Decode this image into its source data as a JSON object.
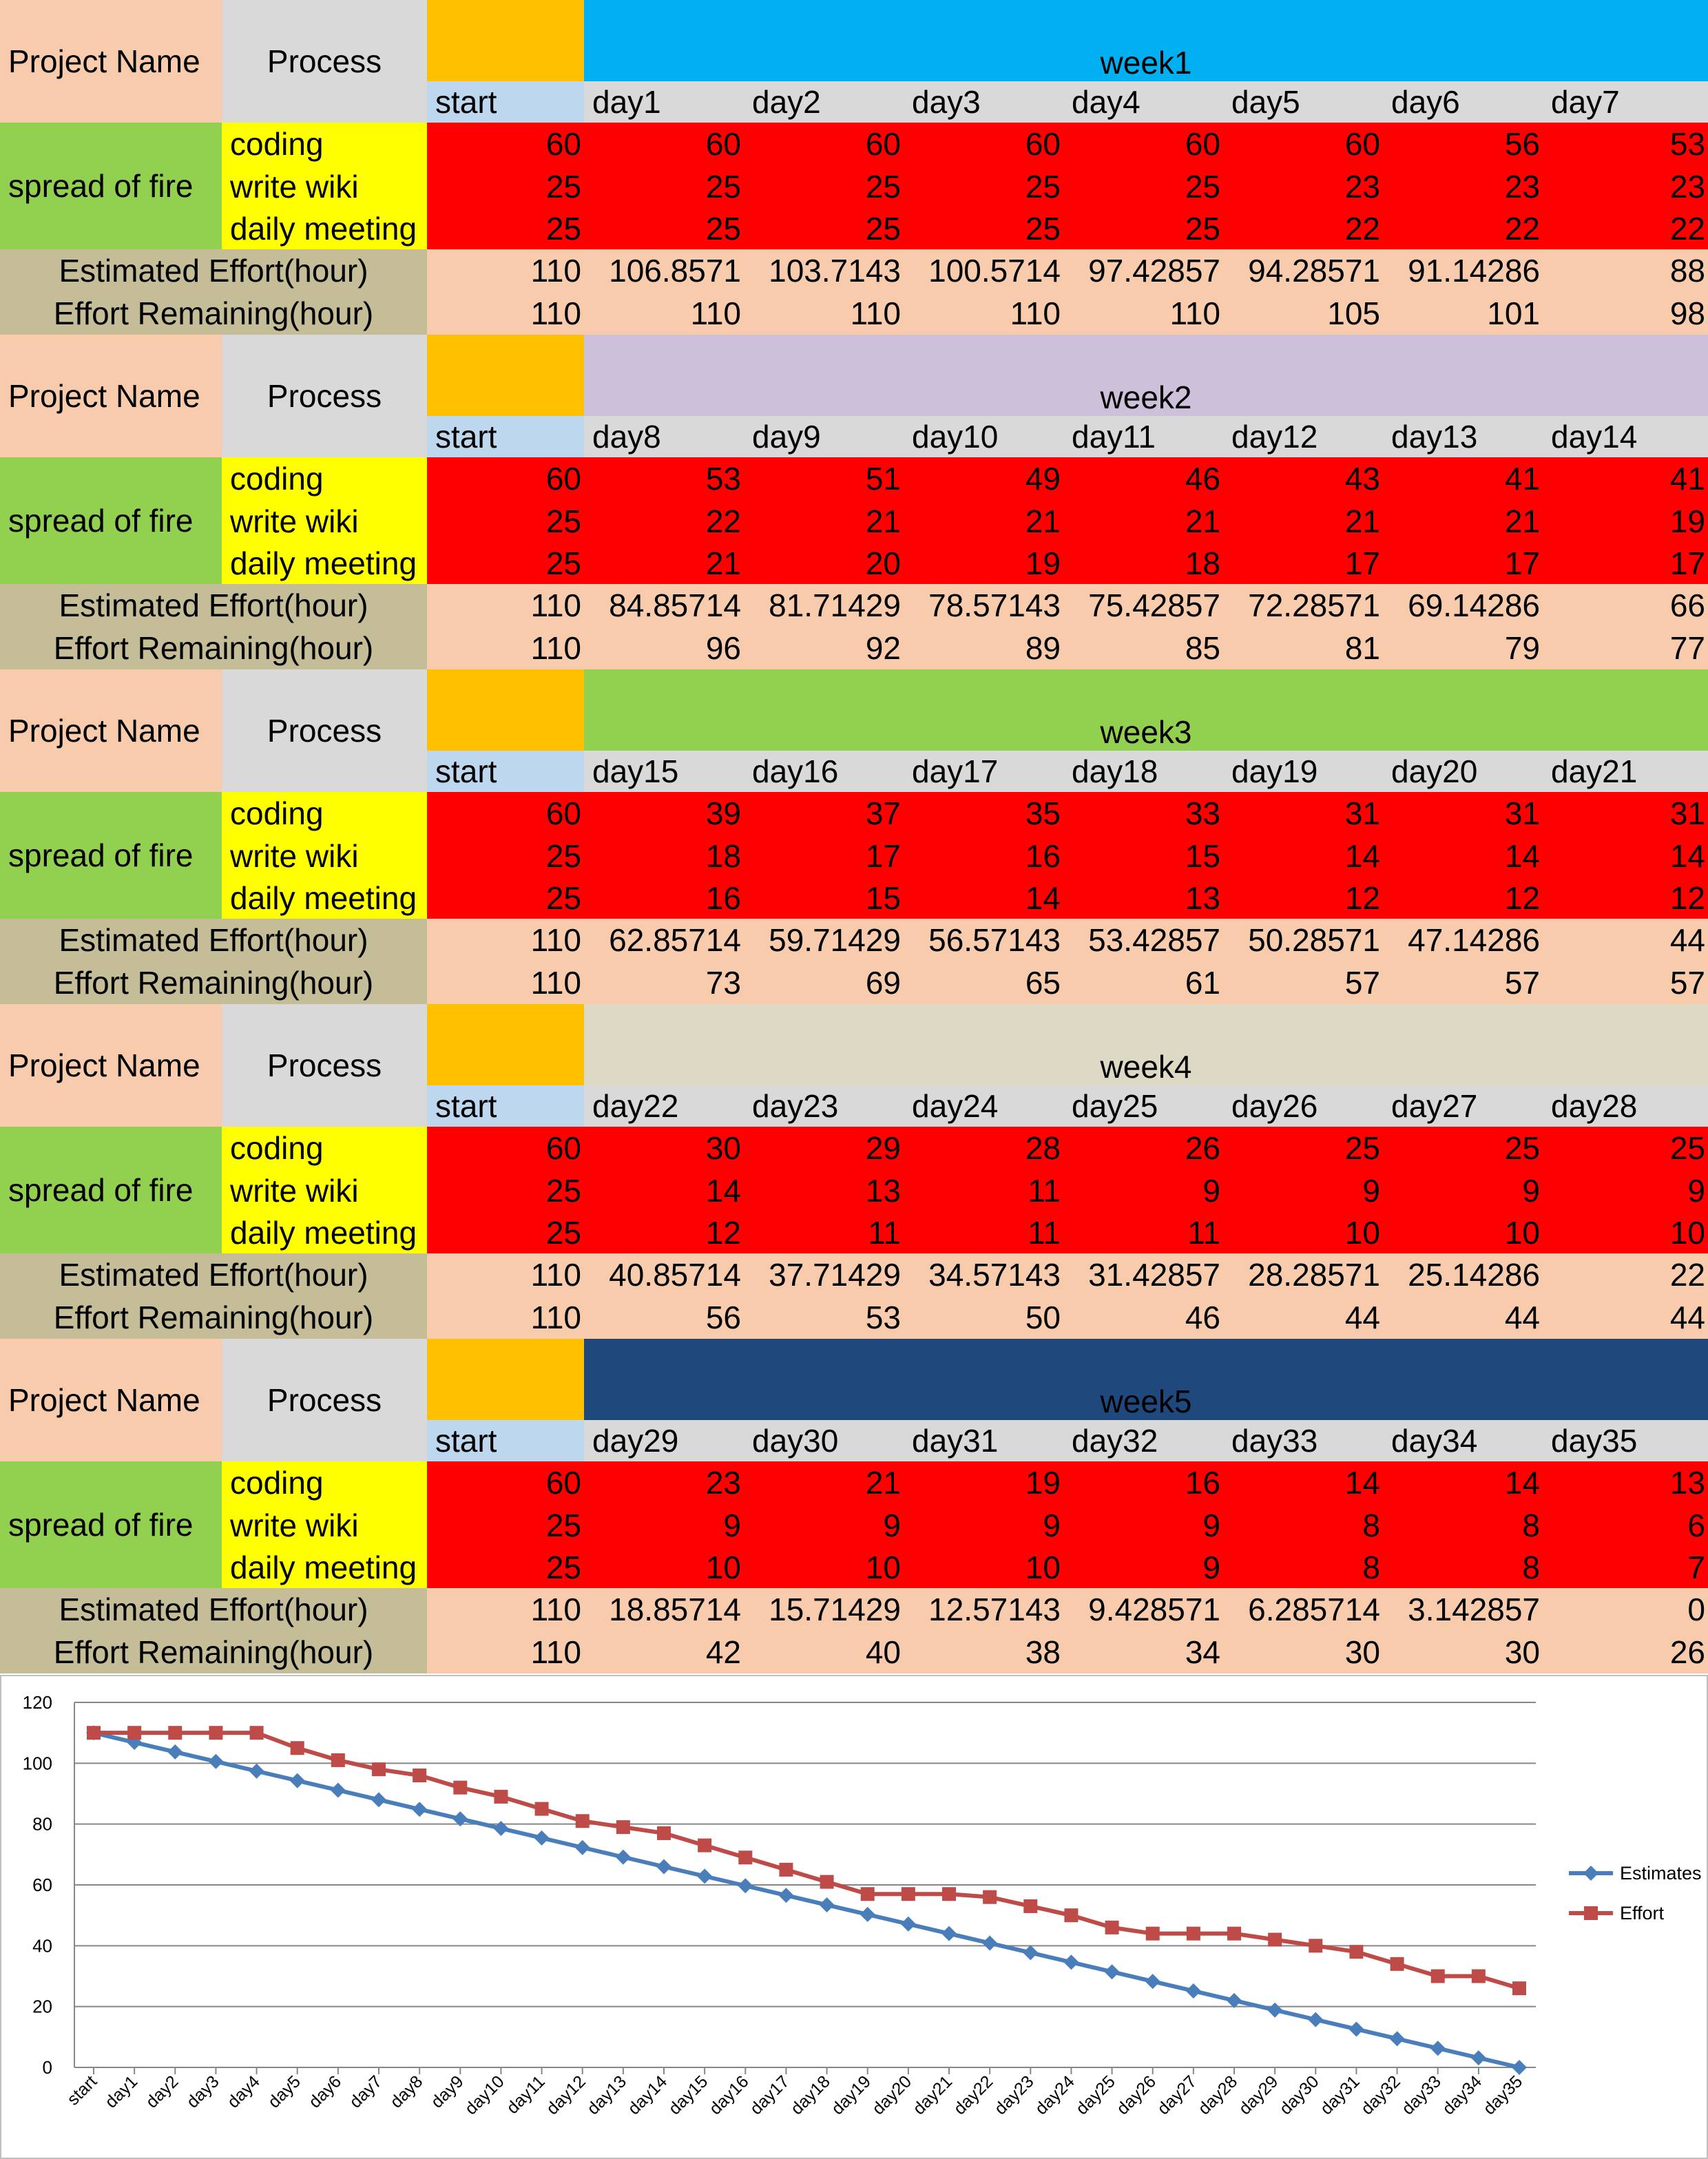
{
  "labels": {
    "project_name": "Project Name",
    "process": "Process",
    "start": "start",
    "project": "spread of fire",
    "processes": [
      "coding",
      "write wiki",
      "daily meeting"
    ],
    "estimated": "Estimated Effort(hour)",
    "remaining": "Effort Remaining(hour)"
  },
  "colors": {
    "project_name_bg": "#f8cbad",
    "process_bg": "#d9d9d9",
    "start_header_bg": "#ffc000",
    "start_bg": "#bdd7ee",
    "project_bg": "#92d050",
    "process_items_bg": "#ffff00",
    "values_bg": "#ff0000",
    "effort_label_bg": "#c4bd97",
    "effort_bg": "#f8cbad",
    "estimates_line": "#4a7ebb",
    "effort_line": "#be4b48"
  },
  "weeks": [
    {
      "title": "week1",
      "color": "#00b0f0",
      "title_color": "#000000",
      "days": [
        "day1",
        "day2",
        "day3",
        "day4",
        "day5",
        "day6",
        "day7"
      ],
      "start": [
        60,
        25,
        25
      ],
      "rows": [
        [
          60,
          60,
          60,
          60,
          60,
          56,
          53
        ],
        [
          25,
          25,
          25,
          25,
          23,
          23,
          23
        ],
        [
          25,
          25,
          25,
          25,
          22,
          22,
          22
        ]
      ],
      "estimated_start": "110",
      "estimated": [
        "106.8571",
        "103.7143",
        "100.5714",
        "97.42857",
        "94.28571",
        "91.14286",
        "88"
      ],
      "remaining_start": "110",
      "remaining": [
        "110",
        "110",
        "110",
        "110",
        "105",
        "101",
        "98"
      ]
    },
    {
      "title": "week2",
      "color": "#ccc0da",
      "title_color": "#000000",
      "days": [
        "day8",
        "day9",
        "day10",
        "day11",
        "day12",
        "day13",
        "day14"
      ],
      "start": [
        60,
        25,
        25
      ],
      "rows": [
        [
          53,
          51,
          49,
          46,
          43,
          41,
          41
        ],
        [
          22,
          21,
          21,
          21,
          21,
          21,
          19
        ],
        [
          21,
          20,
          19,
          18,
          17,
          17,
          17
        ]
      ],
      "estimated_start": "110",
      "estimated": [
        "84.85714",
        "81.71429",
        "78.57143",
        "75.42857",
        "72.28571",
        "69.14286",
        "66"
      ],
      "remaining_start": "110",
      "remaining": [
        "96",
        "92",
        "89",
        "85",
        "81",
        "79",
        "77"
      ]
    },
    {
      "title": "week3",
      "color": "#92d050",
      "title_color": "#000000",
      "days": [
        "day15",
        "day16",
        "day17",
        "day18",
        "day19",
        "day20",
        "day21"
      ],
      "start": [
        60,
        25,
        25
      ],
      "rows": [
        [
          39,
          37,
          35,
          33,
          31,
          31,
          31
        ],
        [
          18,
          17,
          16,
          15,
          14,
          14,
          14
        ],
        [
          16,
          15,
          14,
          13,
          12,
          12,
          12
        ]
      ],
      "estimated_start": "110",
      "estimated": [
        "62.85714",
        "59.71429",
        "56.57143",
        "53.42857",
        "50.28571",
        "47.14286",
        "44"
      ],
      "remaining_start": "110",
      "remaining": [
        "73",
        "69",
        "65",
        "61",
        "57",
        "57",
        "57"
      ]
    },
    {
      "title": "week4",
      "color": "#ddd9c4",
      "title_color": "#000000",
      "days": [
        "day22",
        "day23",
        "day24",
        "day25",
        "day26",
        "day27",
        "day28"
      ],
      "start": [
        60,
        25,
        25
      ],
      "rows": [
        [
          30,
          29,
          28,
          26,
          25,
          25,
          25
        ],
        [
          14,
          13,
          11,
          9,
          9,
          9,
          9
        ],
        [
          12,
          11,
          11,
          11,
          10,
          10,
          10
        ]
      ],
      "estimated_start": "110",
      "estimated": [
        "40.85714",
        "37.71429",
        "34.57143",
        "31.42857",
        "28.28571",
        "25.14286",
        "22"
      ],
      "remaining_start": "110",
      "remaining": [
        "56",
        "53",
        "50",
        "46",
        "44",
        "44",
        "44"
      ]
    },
    {
      "title": "week5",
      "color": "#1f497d",
      "title_color": "#000000",
      "days": [
        "day29",
        "day30",
        "day31",
        "day32",
        "day33",
        "day34",
        "day35"
      ],
      "start": [
        60,
        25,
        25
      ],
      "rows": [
        [
          23,
          21,
          19,
          16,
          14,
          14,
          13
        ],
        [
          9,
          9,
          9,
          9,
          8,
          8,
          6
        ],
        [
          10,
          10,
          10,
          9,
          8,
          8,
          7
        ]
      ],
      "estimated_start": "110",
      "estimated": [
        "18.85714",
        "15.71429",
        "12.57143",
        "9.428571",
        "6.285714",
        "3.142857",
        "0"
      ],
      "remaining_start": "110",
      "remaining": [
        "42",
        "40",
        "38",
        "34",
        "30",
        "30",
        "26"
      ]
    }
  ],
  "chart_data": {
    "type": "line",
    "categories": [
      "start",
      "day1",
      "day2",
      "day3",
      "day4",
      "day5",
      "day6",
      "day7",
      "day8",
      "day9",
      "day10",
      "day11",
      "day12",
      "day13",
      "day14",
      "day15",
      "day16",
      "day17",
      "day18",
      "day19",
      "day20",
      "day21",
      "day22",
      "day23",
      "day24",
      "day25",
      "day26",
      "day27",
      "day28",
      "day29",
      "day30",
      "day31",
      "day32",
      "day33",
      "day34",
      "day35"
    ],
    "series": [
      {
        "name": "Estimates",
        "color": "#4a7ebb",
        "marker": "diamond",
        "values": [
          110,
          106.8571,
          103.7143,
          100.5714,
          97.42857,
          94.28571,
          91.14286,
          88,
          84.85714,
          81.71429,
          78.57143,
          75.42857,
          72.28571,
          69.14286,
          66,
          62.85714,
          59.71429,
          56.57143,
          53.42857,
          50.28571,
          47.14286,
          44,
          40.85714,
          37.71429,
          34.57143,
          31.42857,
          28.28571,
          25.14286,
          22,
          18.85714,
          15.71429,
          12.57143,
          9.428571,
          6.285714,
          3.142857,
          0
        ]
      },
      {
        "name": "Effort",
        "color": "#be4b48",
        "marker": "square",
        "values": [
          110,
          110,
          110,
          110,
          110,
          105,
          101,
          98,
          96,
          92,
          89,
          85,
          81,
          79,
          77,
          73,
          69,
          65,
          61,
          57,
          57,
          57,
          56,
          53,
          50,
          46,
          44,
          44,
          44,
          42,
          40,
          38,
          34,
          30,
          30,
          26
        ]
      }
    ],
    "yticks": [
      "0",
      "20",
      "40",
      "60",
      "80",
      "100",
      "120"
    ],
    "ylim": [
      0,
      120
    ],
    "grid": true,
    "legend": "right"
  }
}
